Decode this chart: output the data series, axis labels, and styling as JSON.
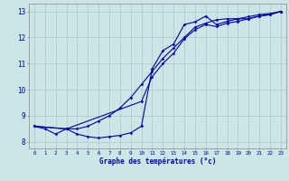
{
  "xlabel": "Graphe des températures (°c)",
  "bg_color": "#cce5e5",
  "grid_color": "#b0cccc",
  "line_color": "#0000aa",
  "xlim": [
    -0.5,
    23.5
  ],
  "ylim": [
    7.75,
    13.3
  ],
  "xticks": [
    0,
    1,
    2,
    3,
    4,
    5,
    6,
    7,
    8,
    9,
    10,
    11,
    12,
    13,
    14,
    15,
    16,
    17,
    18,
    19,
    20,
    21,
    22,
    23
  ],
  "yticks": [
    8,
    9,
    10,
    11,
    12,
    13
  ],
  "curve1_x": [
    0,
    1,
    2,
    3,
    4,
    5,
    6,
    7,
    8,
    9,
    10,
    11,
    12,
    13,
    14,
    15,
    16,
    17,
    18,
    19,
    20,
    21,
    22,
    23
  ],
  "curve1_y": [
    8.6,
    8.5,
    8.3,
    8.5,
    8.3,
    8.2,
    8.15,
    8.2,
    8.25,
    8.35,
    8.6,
    10.8,
    11.5,
    11.75,
    12.5,
    12.6,
    12.82,
    12.5,
    12.62,
    12.72,
    12.72,
    12.82,
    12.88,
    13.0
  ],
  "curve2_x": [
    0,
    3,
    4,
    5,
    6,
    7,
    8,
    9,
    10,
    11,
    12,
    13,
    14,
    15,
    16,
    17,
    18,
    19,
    20,
    21,
    22,
    23
  ],
  "curve2_y": [
    8.6,
    8.5,
    8.5,
    8.6,
    8.8,
    9.0,
    9.3,
    9.7,
    10.2,
    10.7,
    11.2,
    11.6,
    12.0,
    12.4,
    12.55,
    12.68,
    12.72,
    12.72,
    12.8,
    12.88,
    12.92,
    13.0
  ],
  "curve3_x": [
    0,
    3,
    10,
    11,
    12,
    13,
    14,
    15,
    16,
    17,
    18,
    19,
    20,
    21,
    22,
    23
  ],
  "curve3_y": [
    8.6,
    8.5,
    9.55,
    10.5,
    11.0,
    11.4,
    11.95,
    12.3,
    12.5,
    12.42,
    12.55,
    12.62,
    12.72,
    12.82,
    12.88,
    13.0
  ]
}
